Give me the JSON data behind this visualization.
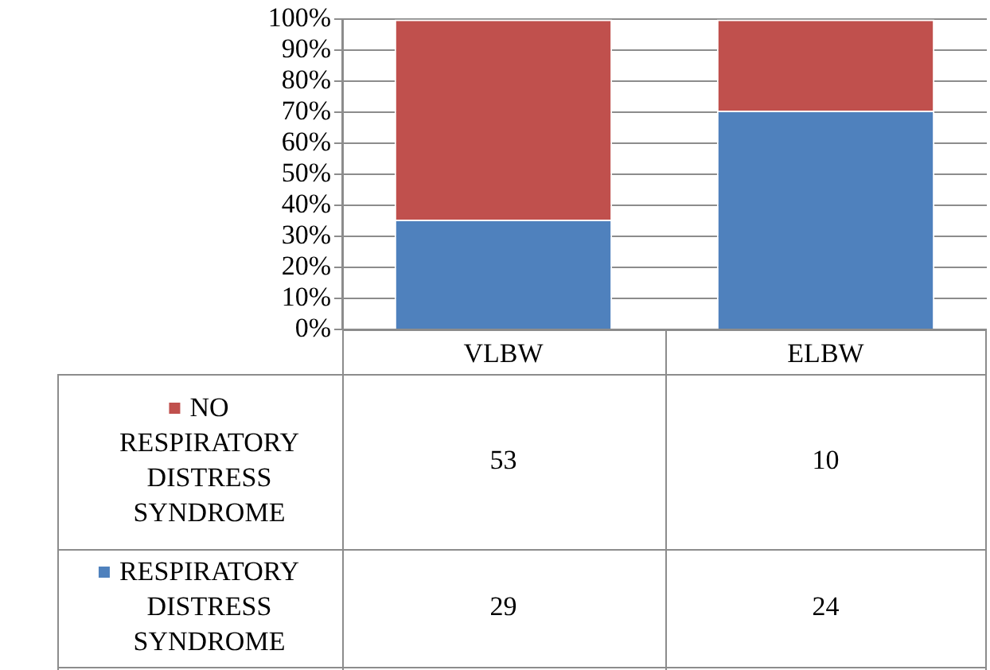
{
  "chart_data": {
    "type": "bar",
    "stacked": true,
    "categories": [
      "VLBW",
      "ELBW"
    ],
    "series": [
      {
        "name": "RESPIRATORY DISTRESS SYNDROME",
        "color": "#4f81bd",
        "values": [
          35.4,
          70.6
        ]
      },
      {
        "name": "NO RESPIRATORY DISTRESS SYNDROME",
        "color": "#c0504d",
        "values": [
          64.6,
          29.4
        ]
      }
    ],
    "annotations": [
      "53",
      "10",
      "29",
      "24"
    ],
    "ylim": [
      0,
      100
    ],
    "yticks": [
      {
        "value": 0,
        "label": "0%"
      },
      {
        "value": 10,
        "label": "10%"
      },
      {
        "value": 20,
        "label": "20%"
      },
      {
        "value": 30,
        "label": "30%"
      },
      {
        "value": 40,
        "label": "40%"
      },
      {
        "value": 50,
        "label": "50%"
      },
      {
        "value": 60,
        "label": "60%"
      },
      {
        "value": 70,
        "label": "70%"
      },
      {
        "value": 80,
        "label": "80%"
      },
      {
        "value": 90,
        "label": "90%"
      },
      {
        "value": 100,
        "label": "100%"
      }
    ],
    "grid": "y",
    "legend": "bottom"
  }
}
